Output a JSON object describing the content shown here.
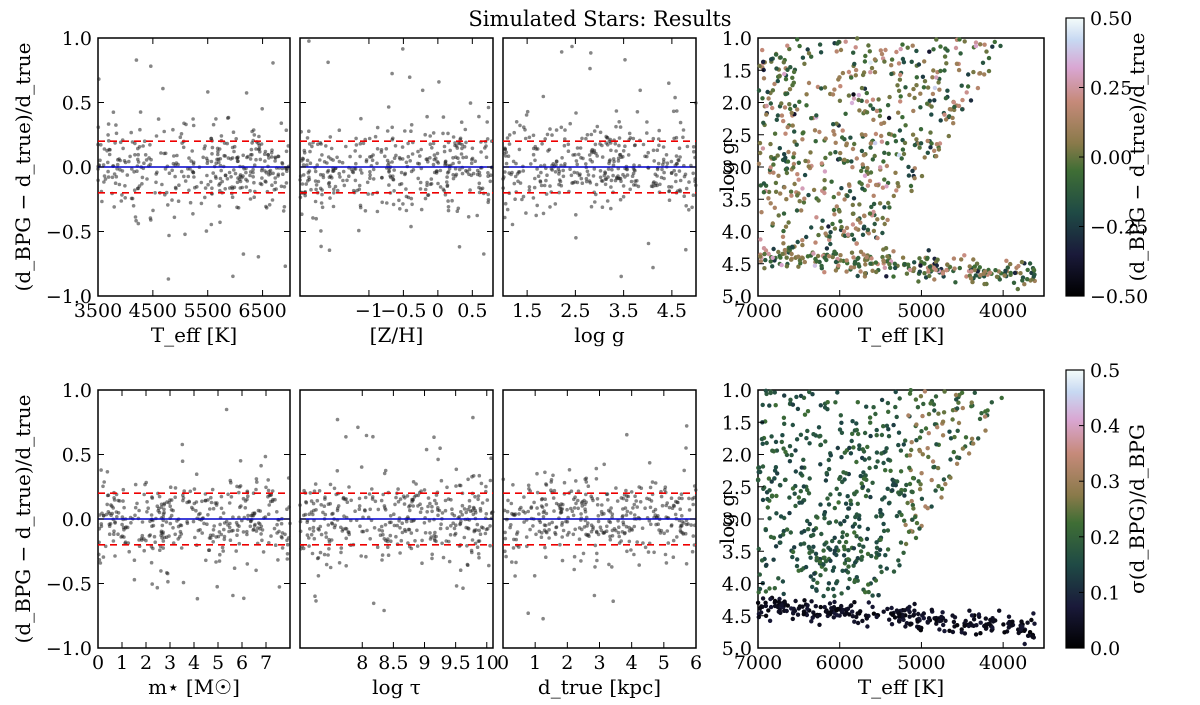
{
  "title": "Simulated Stars: Results",
  "styles": {
    "zero_line": "#0000cc",
    "dash_line": "#ee0000",
    "points": "#222222"
  },
  "row_top": {
    "ylabel": "(d_BPG − d_true)/d_true",
    "panels": [
      {
        "key": "teff",
        "xlabel": "T_eff [K]",
        "xlim": [
          3500,
          7000
        ],
        "xticks": [
          "3500",
          "4500",
          "5500",
          "6500"
        ],
        "xtick_vals": [
          3500,
          4500,
          5500,
          6500
        ]
      },
      {
        "key": "zh",
        "xlabel": "[Z/H]",
        "xlim": [
          -2.0,
          0.8
        ],
        "xticks": [
          "−1",
          "−0.5",
          "0",
          "0.5"
        ],
        "xtick_vals": [
          -1,
          -0.5,
          0,
          0.5
        ]
      },
      {
        "key": "logg",
        "xlabel": "log g",
        "xlim": [
          1.0,
          5.0
        ],
        "xticks": [
          "1.5",
          "2.5",
          "3.5",
          "4.5"
        ],
        "xtick_vals": [
          1.5,
          2.5,
          3.5,
          4.5
        ]
      }
    ]
  },
  "row_bottom": {
    "ylabel": "(d_BPG − d_true)/d_true",
    "panels": [
      {
        "key": "mass",
        "xlabel": "m⋆ [M☉]",
        "xlim": [
          0,
          8
        ],
        "xticks": [
          "0",
          "1",
          "2",
          "3",
          "4",
          "5",
          "6",
          "7"
        ],
        "xtick_vals": [
          0,
          1,
          2,
          3,
          4,
          5,
          6,
          7
        ]
      },
      {
        "key": "age",
        "xlabel": "log τ",
        "xlim": [
          7.0,
          10.1
        ],
        "xticks": [
          "8",
          "8.5",
          "9",
          "9.5",
          "10"
        ],
        "xtick_vals": [
          8,
          8.5,
          9,
          9.5,
          10
        ]
      },
      {
        "key": "dist",
        "xlabel": "d_true [kpc]",
        "xlim": [
          0,
          6
        ],
        "xticks": [
          "0",
          "1",
          "2",
          "3",
          "4",
          "5",
          "6"
        ],
        "xtick_vals": [
          0,
          1,
          2,
          3,
          4,
          5,
          6
        ]
      }
    ]
  },
  "yticks_resid": [
    "−1.0",
    "−0.5",
    "0.0",
    "0.5",
    "1.0"
  ],
  "ytick_resid_vals": [
    -1.0,
    -0.5,
    0.0,
    0.5,
    1.0
  ],
  "hr_top": {
    "xlabel": "T_eff [K]",
    "ylabel": "log g",
    "xlim": [
      7000,
      3500
    ],
    "ylim": [
      1.0,
      5.0
    ],
    "xticks": [
      "7000",
      "6000",
      "5000",
      "4000"
    ],
    "xtick_vals": [
      7000,
      6000,
      5000,
      4000
    ],
    "yticks": [
      "1.0",
      "1.5",
      "2.0",
      "2.5",
      "3.0",
      "3.5",
      "4.0",
      "4.5",
      "5.0"
    ],
    "ytick_vals": [
      1.0,
      1.5,
      2.0,
      2.5,
      3.0,
      3.5,
      4.0,
      4.5,
      5.0
    ],
    "colorbar": {
      "label": "(d_BPG − d_true)/d_true",
      "range": [
        -0.5,
        0.5
      ],
      "ticks": [
        "−0.50",
        "−0.25",
        "0.00",
        "0.25",
        "0.50"
      ],
      "tick_vals": [
        -0.5,
        -0.25,
        0,
        0.25,
        0.5
      ]
    }
  },
  "hr_bottom": {
    "xlabel": "T_eff [K]",
    "ylabel": "log g",
    "xlim": [
      7000,
      3500
    ],
    "ylim": [
      1.0,
      5.0
    ],
    "xticks": [
      "7000",
      "6000",
      "5000",
      "4000"
    ],
    "xtick_vals": [
      7000,
      6000,
      5000,
      4000
    ],
    "yticks": [
      "1.0",
      "1.5",
      "2.0",
      "2.5",
      "3.0",
      "3.5",
      "4.0",
      "4.5",
      "5.0"
    ],
    "ytick_vals": [
      1.0,
      1.5,
      2.0,
      2.5,
      3.0,
      3.5,
      4.0,
      4.5,
      5.0
    ],
    "colorbar": {
      "label": "σ(d_BPG)/d_BPG",
      "range": [
        0.0,
        0.5
      ],
      "ticks": [
        "0.0",
        "0.1",
        "0.2",
        "0.3",
        "0.4",
        "0.5"
      ],
      "tick_vals": [
        0,
        0.1,
        0.2,
        0.3,
        0.4,
        0.5
      ]
    }
  },
  "chart_data": [
    {
      "type": "scatter",
      "title": "Simulated Stars: Results",
      "xlabel": "T_eff [K]",
      "ylabel": "(d_BPG − d_true)/d_true",
      "xlim": [
        3500,
        7000
      ],
      "ylim": [
        -1,
        1
      ],
      "reference_lines": [
        0,
        0.2,
        -0.2
      ],
      "series": [
        {
          "points": [
            [
              3700,
              0.1
            ],
            [
              3900,
              -0.1
            ],
            [
              4100,
              0.3
            ],
            [
              4300,
              -0.2
            ],
            [
              4500,
              0.05
            ],
            [
              4700,
              -0.35
            ],
            [
              4800,
              0.6
            ],
            [
              4900,
              0.2
            ],
            [
              5000,
              -0.05
            ],
            [
              5200,
              0.15
            ],
            [
              5500,
              -0.15
            ],
            [
              5800,
              0.1
            ],
            [
              6100,
              -0.05
            ],
            [
              6400,
              0.08
            ],
            [
              6800,
              -0.02
            ]
          ]
        }
      ]
    },
    {
      "type": "scatter",
      "xlabel": "[Z/H]",
      "ylim": [
        -1,
        1
      ],
      "series": [
        {
          "points": [
            [
              -1.8,
              0.1
            ],
            [
              -1.5,
              -0.2
            ],
            [
              -1.2,
              0.15
            ],
            [
              -1.0,
              -0.1
            ],
            [
              -0.8,
              0.3
            ],
            [
              -0.5,
              -0.25
            ],
            [
              -0.3,
              0.05
            ],
            [
              0,
              0.12
            ],
            [
              0.2,
              -0.08
            ],
            [
              0.4,
              0.2
            ],
            [
              0.6,
              -0.15
            ]
          ]
        }
      ]
    },
    {
      "type": "scatter",
      "xlabel": "log g",
      "ylim": [
        -1,
        1
      ],
      "series": [
        {
          "points": [
            [
              1.3,
              0.2
            ],
            [
              1.6,
              -0.1
            ],
            [
              2.0,
              0.35
            ],
            [
              2.3,
              -0.3
            ],
            [
              2.6,
              0.1
            ],
            [
              3.0,
              -0.05
            ],
            [
              3.5,
              0.08
            ],
            [
              4.0,
              -0.02
            ],
            [
              4.5,
              0.03
            ],
            [
              4.8,
              -0.01
            ]
          ]
        }
      ]
    },
    {
      "type": "scatter",
      "xlabel": "m⋆ [M☉]",
      "ylabel": "(d_BPG − d_true)/d_true",
      "ylim": [
        -1,
        1
      ],
      "series": [
        {
          "points": [
            [
              0.5,
              0.05
            ],
            [
              1.0,
              0.6
            ],
            [
              1.2,
              0.2
            ],
            [
              1.5,
              -0.2
            ],
            [
              2.0,
              0.3
            ],
            [
              2.5,
              -0.3
            ],
            [
              3.0,
              0.1
            ],
            [
              4.0,
              -0.1
            ],
            [
              5.0,
              0.05
            ],
            [
              6.0,
              -0.02
            ],
            [
              7.0,
              0.01
            ]
          ]
        }
      ]
    },
    {
      "type": "scatter",
      "xlabel": "log τ",
      "ylim": [
        -1,
        1
      ],
      "series": [
        {
          "points": [
            [
              7.5,
              0.1
            ],
            [
              8.0,
              -0.2
            ],
            [
              8.5,
              0.25
            ],
            [
              9.0,
              -0.15
            ],
            [
              9.3,
              0.3
            ],
            [
              9.6,
              -0.1
            ],
            [
              9.9,
              0.4
            ],
            [
              10.0,
              -0.2
            ]
          ]
        }
      ]
    },
    {
      "type": "scatter",
      "xlabel": "d_true [kpc]",
      "ylim": [
        -1,
        1
      ],
      "series": [
        {
          "points": [
            [
              0.3,
              0.05
            ],
            [
              1.0,
              0.2
            ],
            [
              1.8,
              -0.2
            ],
            [
              2.5,
              0.3
            ],
            [
              3.0,
              -0.15
            ],
            [
              4.0,
              0.25
            ],
            [
              5.0,
              -0.1
            ],
            [
              5.8,
              0.35
            ]
          ]
        }
      ]
    },
    {
      "type": "scatter",
      "xlabel": "T_eff [K]",
      "ylabel": "log g",
      "xlim": [
        7000,
        3500
      ],
      "ylim": [
        5.0,
        1.0
      ],
      "color_range": [
        -0.5,
        0.5
      ],
      "series": [
        {
          "points": [
            [
              6800,
              1.5
            ],
            [
              6500,
              2.2
            ],
            [
              6000,
              3.0
            ],
            [
              5500,
              2.5
            ],
            [
              5000,
              1.8
            ],
            [
              4500,
              1.2
            ],
            [
              4200,
              1.0
            ],
            [
              6800,
              4.5
            ],
            [
              6000,
              4.4
            ],
            [
              5000,
              4.6
            ],
            [
              4000,
              4.7
            ]
          ]
        }
      ]
    },
    {
      "type": "scatter",
      "xlabel": "T_eff [K]",
      "ylabel": "log g",
      "xlim": [
        7000,
        3500
      ],
      "ylim": [
        5.0,
        1.0
      ],
      "color_range": [
        0.0,
        0.5
      ],
      "series": [
        {
          "points": [
            [
              6800,
              1.5
            ],
            [
              6500,
              2.2
            ],
            [
              6000,
              3.0
            ],
            [
              5500,
              2.5
            ],
            [
              5000,
              1.8
            ],
            [
              4500,
              1.2
            ],
            [
              4200,
              1.0
            ],
            [
              6800,
              4.5
            ],
            [
              6000,
              4.4
            ],
            [
              5000,
              4.6
            ],
            [
              4000,
              4.7
            ]
          ]
        }
      ]
    }
  ]
}
